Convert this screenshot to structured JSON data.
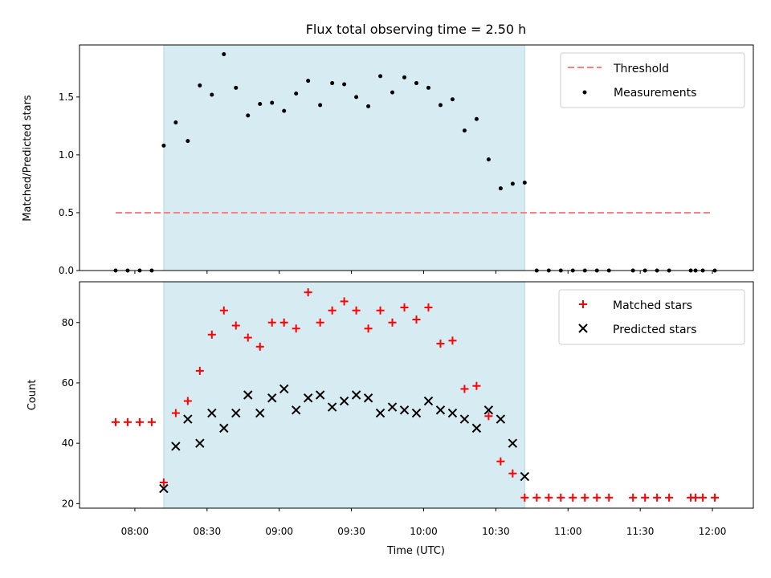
{
  "chart_data": [
    {
      "type": "scatter",
      "title": "Flux total observing time = 2.50 h",
      "xlabel": "",
      "ylabel": "Matched/Predicted stars",
      "ylim": [
        0,
        1.95
      ],
      "y_ticks": [
        0.0,
        0.5,
        1.0,
        1.5
      ],
      "y_tick_labels": [
        "0.0",
        "0.5",
        "1.0",
        "1.5"
      ],
      "observing_window": [
        "08:12",
        "10:42"
      ],
      "threshold": {
        "label": "Threshold",
        "value": 0.5,
        "x_start": "07:52",
        "x_end": "12:00",
        "color": "#ff7f7f"
      },
      "series": [
        {
          "name": "Measurements",
          "color": "#000000",
          "points": [
            [
              "07:52",
              0.0
            ],
            [
              "07:57",
              0.0
            ],
            [
              "08:02",
              0.0
            ],
            [
              "08:07",
              0.0
            ],
            [
              "08:12",
              1.08
            ],
            [
              "08:17",
              1.28
            ],
            [
              "08:22",
              1.12
            ],
            [
              "08:27",
              1.6
            ],
            [
              "08:32",
              1.52
            ],
            [
              "08:37",
              1.87
            ],
            [
              "08:42",
              1.58
            ],
            [
              "08:47",
              1.34
            ],
            [
              "08:52",
              1.44
            ],
            [
              "08:57",
              1.45
            ],
            [
              "09:02",
              1.38
            ],
            [
              "09:07",
              1.53
            ],
            [
              "09:12",
              1.64
            ],
            [
              "09:17",
              1.43
            ],
            [
              "09:22",
              1.62
            ],
            [
              "09:27",
              1.61
            ],
            [
              "09:32",
              1.5
            ],
            [
              "09:37",
              1.42
            ],
            [
              "09:42",
              1.68
            ],
            [
              "09:47",
              1.54
            ],
            [
              "09:52",
              1.67
            ],
            [
              "09:57",
              1.62
            ],
            [
              "10:02",
              1.58
            ],
            [
              "10:07",
              1.43
            ],
            [
              "10:12",
              1.48
            ],
            [
              "10:17",
              1.21
            ],
            [
              "10:22",
              1.31
            ],
            [
              "10:27",
              0.96
            ],
            [
              "10:32",
              0.71
            ],
            [
              "10:37",
              0.75
            ],
            [
              "10:42",
              0.76
            ],
            [
              "10:47",
              0.0
            ],
            [
              "10:52",
              0.0
            ],
            [
              "10:57",
              0.0
            ],
            [
              "11:02",
              0.0
            ],
            [
              "11:07",
              0.0
            ],
            [
              "11:12",
              0.0
            ],
            [
              "11:17",
              0.0
            ],
            [
              "11:27",
              0.0
            ],
            [
              "11:32",
              0.0
            ],
            [
              "11:37",
              0.0
            ],
            [
              "11:42",
              0.0
            ],
            [
              "11:51",
              0.0
            ],
            [
              "11:53",
              0.0
            ],
            [
              "11:56",
              0.0
            ],
            [
              "12:01",
              0.0
            ]
          ]
        }
      ],
      "legend": "top-right",
      "grid": false
    },
    {
      "type": "scatter",
      "title": "",
      "xlabel": "Time (UTC)",
      "ylabel": "Count",
      "ylim": [
        18.5,
        93.5
      ],
      "y_ticks": [
        20,
        40,
        60,
        80
      ],
      "y_tick_labels": [
        "20",
        "40",
        "60",
        "80"
      ],
      "x_ticks": [
        "08:00",
        "08:30",
        "09:00",
        "09:30",
        "10:00",
        "10:30",
        "11:00",
        "11:30",
        "12:00"
      ],
      "observing_window": [
        "08:12",
        "10:42"
      ],
      "series": [
        {
          "name": "Matched stars",
          "marker": "plus",
          "color": "#ff0000",
          "points": [
            [
              "07:52",
              47
            ],
            [
              "07:57",
              47
            ],
            [
              "08:02",
              47
            ],
            [
              "08:07",
              47
            ],
            [
              "08:12",
              27
            ],
            [
              "08:17",
              50
            ],
            [
              "08:22",
              54
            ],
            [
              "08:27",
              64
            ],
            [
              "08:32",
              76
            ],
            [
              "08:37",
              84
            ],
            [
              "08:42",
              79
            ],
            [
              "08:47",
              75
            ],
            [
              "08:52",
              72
            ],
            [
              "08:57",
              80
            ],
            [
              "09:02",
              80
            ],
            [
              "09:07",
              78
            ],
            [
              "09:12",
              90
            ],
            [
              "09:17",
              80
            ],
            [
              "09:22",
              84
            ],
            [
              "09:27",
              87
            ],
            [
              "09:32",
              84
            ],
            [
              "09:37",
              78
            ],
            [
              "09:42",
              84
            ],
            [
              "09:47",
              80
            ],
            [
              "09:52",
              85
            ],
            [
              "09:57",
              81
            ],
            [
              "10:02",
              85
            ],
            [
              "10:07",
              73
            ],
            [
              "10:12",
              74
            ],
            [
              "10:17",
              58
            ],
            [
              "10:22",
              59
            ],
            [
              "10:27",
              49
            ],
            [
              "10:32",
              34
            ],
            [
              "10:37",
              30
            ],
            [
              "10:42",
              22
            ],
            [
              "10:47",
              22
            ],
            [
              "10:52",
              22
            ],
            [
              "10:57",
              22
            ],
            [
              "11:02",
              22
            ],
            [
              "11:07",
              22
            ],
            [
              "11:12",
              22
            ],
            [
              "11:17",
              22
            ],
            [
              "11:27",
              22
            ],
            [
              "11:32",
              22
            ],
            [
              "11:37",
              22
            ],
            [
              "11:42",
              22
            ],
            [
              "11:51",
              22
            ],
            [
              "11:53",
              22
            ],
            [
              "11:56",
              22
            ],
            [
              "12:01",
              22
            ]
          ]
        },
        {
          "name": "Predicted stars",
          "marker": "x",
          "color": "#000000",
          "points": [
            [
              "08:12",
              25
            ],
            [
              "08:17",
              39
            ],
            [
              "08:22",
              48
            ],
            [
              "08:27",
              40
            ],
            [
              "08:32",
              50
            ],
            [
              "08:37",
              45
            ],
            [
              "08:42",
              50
            ],
            [
              "08:47",
              56
            ],
            [
              "08:52",
              50
            ],
            [
              "08:57",
              55
            ],
            [
              "09:02",
              58
            ],
            [
              "09:07",
              51
            ],
            [
              "09:12",
              55
            ],
            [
              "09:17",
              56
            ],
            [
              "09:22",
              52
            ],
            [
              "09:27",
              54
            ],
            [
              "09:32",
              56
            ],
            [
              "09:37",
              55
            ],
            [
              "09:42",
              50
            ],
            [
              "09:47",
              52
            ],
            [
              "09:52",
              51
            ],
            [
              "09:57",
              50
            ],
            [
              "10:02",
              54
            ],
            [
              "10:07",
              51
            ],
            [
              "10:12",
              50
            ],
            [
              "10:17",
              48
            ],
            [
              "10:22",
              45
            ],
            [
              "10:27",
              51
            ],
            [
              "10:32",
              48
            ],
            [
              "10:37",
              40
            ],
            [
              "10:42",
              29
            ]
          ]
        }
      ],
      "legend": "top-right",
      "grid": false
    }
  ],
  "colors": {
    "window_fill": "#add8e6",
    "threshold": "#ff7f7f",
    "matched": "#ff0000",
    "predicted": "#000000",
    "measurement": "#000000"
  }
}
